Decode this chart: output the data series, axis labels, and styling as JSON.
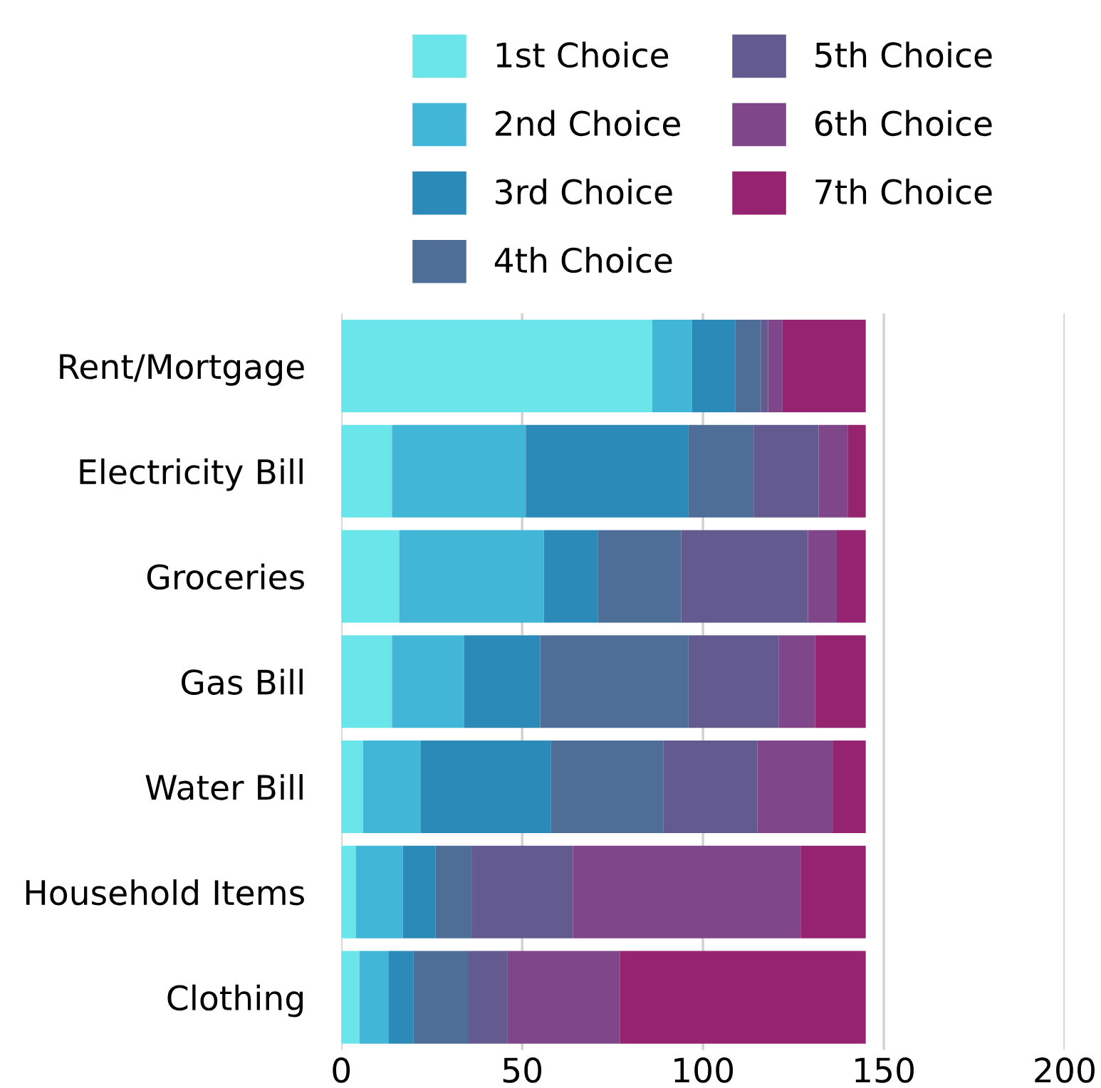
{
  "chart_data": {
    "type": "bar",
    "orientation": "horizontal",
    "stacked": true,
    "categories": [
      "Rent/Mortgage",
      "Electricity Bill",
      "Groceries",
      "Gas Bill",
      "Water Bill",
      "Household Items",
      "Clothing"
    ],
    "series": [
      {
        "name": "1st Choice",
        "color": "#6ae6ea",
        "values": [
          86,
          14,
          16,
          14,
          6,
          4,
          5
        ]
      },
      {
        "name": "2nd Choice",
        "color": "#42b6d6",
        "values": [
          11,
          37,
          40,
          20,
          16,
          13,
          8
        ]
      },
      {
        "name": "3rd Choice",
        "color": "#2c8ab8",
        "values": [
          12,
          45,
          15,
          21,
          36,
          9,
          7
        ]
      },
      {
        "name": "4th Choice",
        "color": "#4e6e98",
        "values": [
          7,
          18,
          23,
          41,
          31,
          10,
          15
        ]
      },
      {
        "name": "5th Choice",
        "color": "#635b8f",
        "values": [
          2,
          18,
          35,
          25,
          26,
          28,
          11
        ]
      },
      {
        "name": "6th Choice",
        "color": "#7f4689",
        "values": [
          4,
          8,
          8,
          10,
          21,
          63,
          31
        ]
      },
      {
        "name": "7th Choice",
        "color": "#95236f",
        "values": [
          23,
          5,
          8,
          14,
          9,
          18,
          68
        ]
      }
    ],
    "xlim": [
      0,
      200
    ],
    "xticks": [
      0,
      50,
      100,
      150,
      200
    ],
    "grid": "x",
    "legend": "top"
  }
}
